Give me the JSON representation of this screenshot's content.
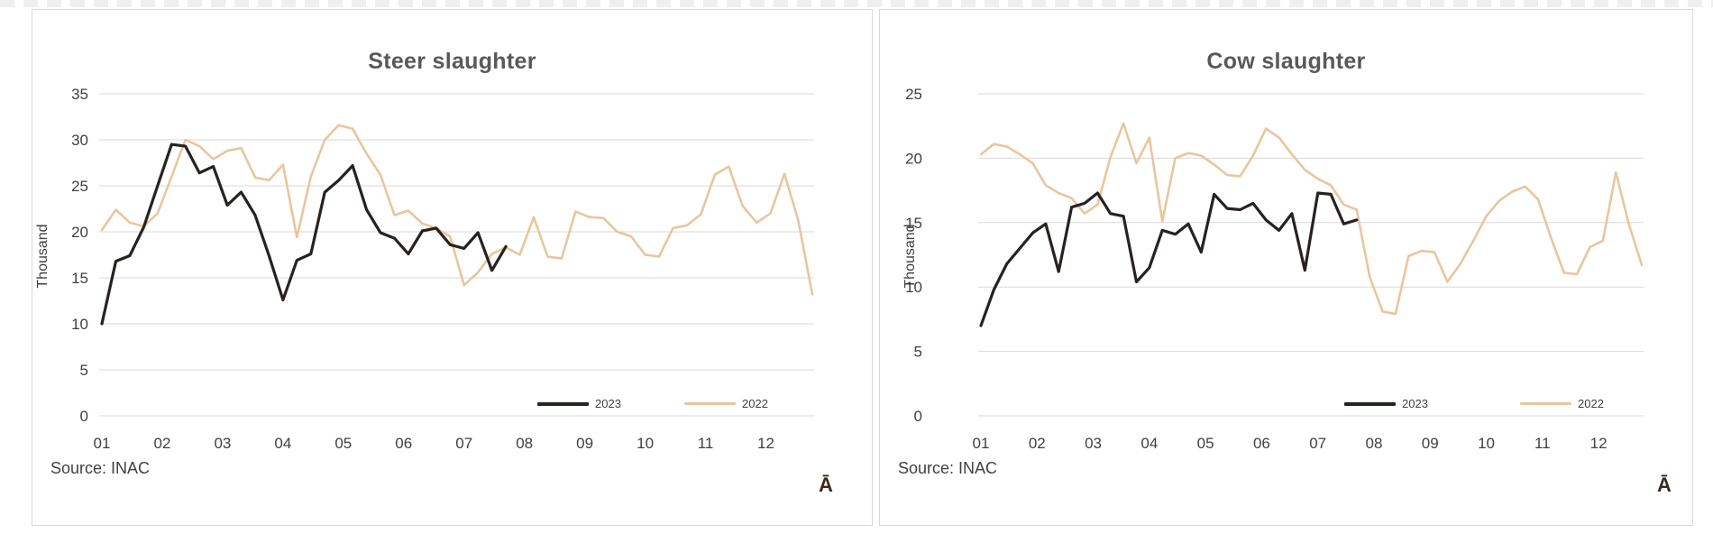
{
  "chart_data": [
    {
      "type": "line",
      "title": "Steer slaughter",
      "ylabel": "Thousand",
      "ylim": [
        0,
        35
      ],
      "ytick_step": 5,
      "grid": true,
      "categories": [
        "01",
        "02",
        "03",
        "04",
        "05",
        "06",
        "07",
        "08",
        "09",
        "10",
        "11",
        "12"
      ],
      "x_unit": "week-of-year (52 weeks, labels at month starts)",
      "legend_position": "inside-bottom-right",
      "source_note": "Source: INAC",
      "corner_mark": "Ā",
      "series": [
        {
          "name": "2023",
          "color": "#272220",
          "values": [
            10.0,
            16.8,
            17.4,
            20.5,
            25.0,
            29.5,
            29.3,
            26.4,
            27.1,
            22.9,
            24.3,
            21.8,
            17.4,
            12.6,
            16.9,
            17.6,
            24.3,
            25.6,
            27.2,
            22.4,
            19.9,
            19.3,
            17.6,
            20.1,
            20.4,
            18.6,
            18.2,
            19.9,
            15.8,
            18.4
          ]
        },
        {
          "name": "2022",
          "color": "#e8c69e",
          "values": [
            20.2,
            22.4,
            21.0,
            20.6,
            22.0,
            26.0,
            30.0,
            29.3,
            27.9,
            28.8,
            29.1,
            25.9,
            25.6,
            27.3,
            19.4,
            26.0,
            30.0,
            31.6,
            31.2,
            28.5,
            26.2,
            21.8,
            22.3,
            20.9,
            20.4,
            19.5,
            14.2,
            15.6,
            17.6,
            18.3,
            17.5,
            21.6,
            17.3,
            17.1,
            22.2,
            21.6,
            21.5,
            20.0,
            19.5,
            17.5,
            17.3,
            20.4,
            20.7,
            21.9,
            26.2,
            27.1,
            22.8,
            21.0,
            22.0,
            26.3,
            21.2,
            13.2
          ]
        }
      ]
    },
    {
      "type": "line",
      "title": "Cow slaughter",
      "ylabel": "Thousand",
      "ylim": [
        0,
        25
      ],
      "ytick_step": 5,
      "grid": true,
      "categories": [
        "01",
        "02",
        "03",
        "04",
        "05",
        "06",
        "07",
        "08",
        "09",
        "10",
        "11",
        "12"
      ],
      "x_unit": "week-of-year (52 weeks, labels at month starts)",
      "legend_position": "inside-bottom-right",
      "source_note": "Source: INAC",
      "corner_mark": "Ā",
      "series": [
        {
          "name": "2023",
          "color": "#272220",
          "values": [
            7.0,
            9.8,
            11.8,
            13.0,
            14.2,
            14.9,
            11.2,
            16.2,
            16.5,
            17.3,
            15.7,
            15.5,
            10.4,
            11.5,
            14.4,
            14.1,
            14.9,
            12.7,
            17.2,
            16.1,
            16.0,
            16.5,
            15.2,
            14.4,
            15.7,
            11.3,
            17.3,
            17.2,
            14.9,
            15.2
          ]
        },
        {
          "name": "2022",
          "color": "#e8c69e",
          "values": [
            20.3,
            21.1,
            20.9,
            20.3,
            19.6,
            17.9,
            17.3,
            16.9,
            15.7,
            16.4,
            20.1,
            22.7,
            19.6,
            21.6,
            15.1,
            20.0,
            20.4,
            20.2,
            19.5,
            18.7,
            18.6,
            20.2,
            22.3,
            21.6,
            20.3,
            19.1,
            18.4,
            17.9,
            16.4,
            16.0,
            10.8,
            8.1,
            7.9,
            12.4,
            12.8,
            12.7,
            10.4,
            11.8,
            13.6,
            15.5,
            16.7,
            17.4,
            17.8,
            16.8,
            13.8,
            11.1,
            11.0,
            13.1,
            13.6,
            18.9,
            14.9,
            11.7
          ]
        }
      ]
    }
  ]
}
